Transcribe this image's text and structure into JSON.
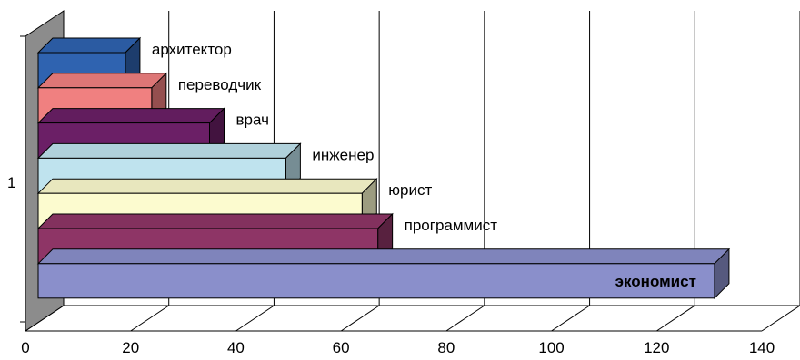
{
  "chart_data": {
    "type": "bar",
    "orientation": "horizontal",
    "three_d": true,
    "category_axis_label": "1",
    "xlim": [
      0,
      140
    ],
    "x_ticks": [
      0,
      20,
      40,
      60,
      80,
      100,
      120,
      140
    ],
    "grid": true,
    "legend": "none",
    "series": [
      {
        "name": "архитектор",
        "value": 19,
        "color": "#2f63b0",
        "label_bold": false
      },
      {
        "name": "переводчик",
        "value": 24,
        "color": "#f08080",
        "label_bold": false
      },
      {
        "name": "врач",
        "value": 35,
        "color": "#6b1f66",
        "label_bold": false
      },
      {
        "name": "инженер",
        "value": 49.5,
        "color": "#bfe3ee",
        "label_bold": false
      },
      {
        "name": "юрист",
        "value": 64,
        "color": "#fcfbcf",
        "label_bold": false
      },
      {
        "name": "программист",
        "value": 67,
        "color": "#8e3566",
        "label_bold": false
      },
      {
        "name": "экономист",
        "value": 131,
        "color": "#8a8fcb",
        "label_bold": true
      }
    ]
  }
}
